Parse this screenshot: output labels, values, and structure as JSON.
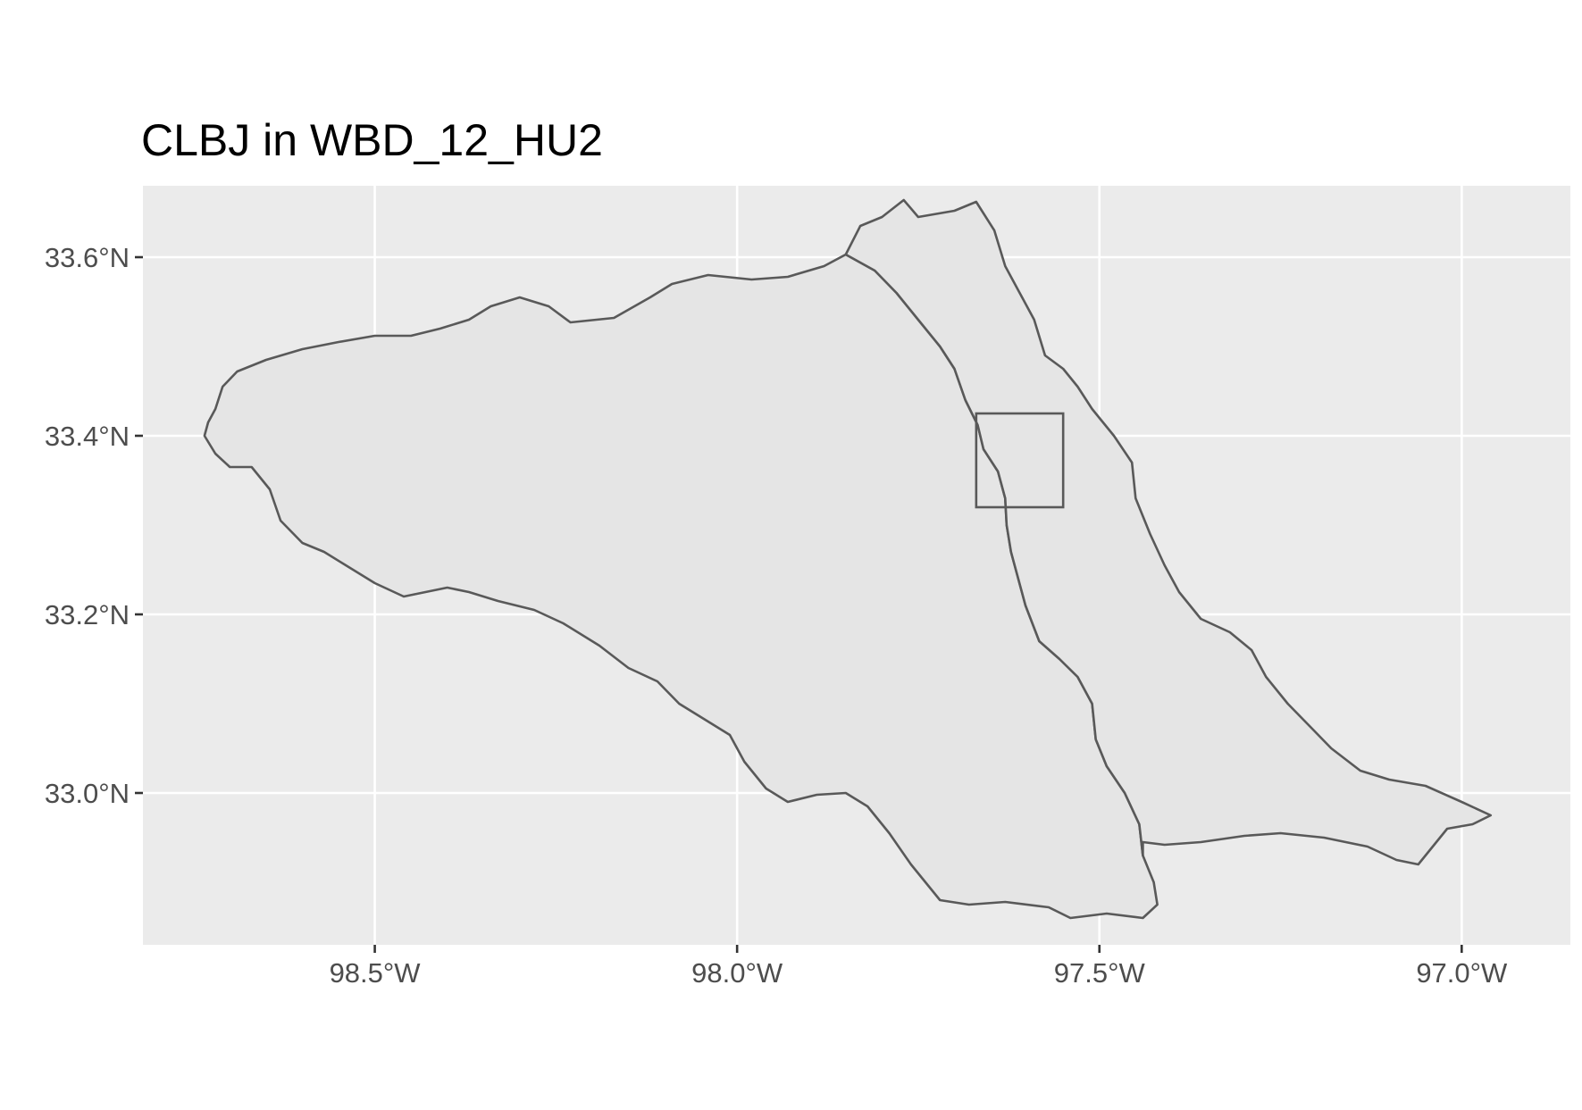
{
  "title": "CLBJ in WBD_12_HU2",
  "colors": {
    "panel_background": "#ebebeb",
    "grid": "#ffffff",
    "polygon_fill": "#e5e5e5",
    "polygon_stroke": "#595959",
    "tick": "#333333",
    "tick_label": "#4d4d4d"
  },
  "map": {
    "projection": "lon/lat",
    "x_range": [
      -98.82,
      -96.85
    ],
    "y_range": [
      32.83,
      33.68
    ],
    "x_ticks": [
      {
        "value": -98.5,
        "label": "98.5°W"
      },
      {
        "value": -98.0,
        "label": "98.0°W"
      },
      {
        "value": -97.5,
        "label": "97.5°W"
      },
      {
        "value": -97.0,
        "label": "97.0°W"
      }
    ],
    "y_ticks": [
      {
        "value": 33.6,
        "label": "33.6°N"
      },
      {
        "value": 33.4,
        "label": "33.4°N"
      },
      {
        "value": 33.2,
        "label": "33.2°N"
      },
      {
        "value": 33.0,
        "label": "33.0°N"
      }
    ],
    "grid": true,
    "watersheds": [
      {
        "id": "west",
        "outline": [
          [
            -98.73,
            33.415
          ],
          [
            -98.72,
            33.43
          ],
          [
            -98.71,
            33.455
          ],
          [
            -98.69,
            33.472
          ],
          [
            -98.65,
            33.485
          ],
          [
            -98.6,
            33.497
          ],
          [
            -98.55,
            33.505
          ],
          [
            -98.5,
            33.512
          ],
          [
            -98.45,
            33.512
          ],
          [
            -98.41,
            33.52
          ],
          [
            -98.37,
            33.53
          ],
          [
            -98.34,
            33.545
          ],
          [
            -98.3,
            33.555
          ],
          [
            -98.26,
            33.545
          ],
          [
            -98.23,
            33.527
          ],
          [
            -98.17,
            33.532
          ],
          [
            -98.12,
            33.555
          ],
          [
            -98.09,
            33.57
          ],
          [
            -98.04,
            33.58
          ],
          [
            -97.98,
            33.575
          ],
          [
            -97.93,
            33.578
          ],
          [
            -97.88,
            33.59
          ],
          [
            -97.85,
            33.603
          ],
          [
            -97.81,
            33.585
          ],
          [
            -97.78,
            33.56
          ],
          [
            -97.75,
            33.53
          ],
          [
            -97.72,
            33.5
          ],
          [
            -97.7,
            33.475
          ],
          [
            -97.685,
            33.44
          ],
          [
            -97.668,
            33.412
          ],
          [
            -97.66,
            33.385
          ],
          [
            -97.64,
            33.36
          ],
          [
            -97.63,
            33.33
          ],
          [
            -97.628,
            33.3
          ],
          [
            -97.622,
            33.27
          ],
          [
            -97.612,
            33.24
          ],
          [
            -97.602,
            33.21
          ],
          [
            -97.583,
            33.17
          ],
          [
            -97.555,
            33.15
          ],
          [
            -97.53,
            33.13
          ],
          [
            -97.51,
            33.1
          ],
          [
            -97.505,
            33.06
          ],
          [
            -97.49,
            33.03
          ],
          [
            -97.465,
            33.0
          ],
          [
            -97.445,
            32.965
          ],
          [
            -97.44,
            32.93
          ],
          [
            -97.425,
            32.9
          ],
          [
            -97.42,
            32.875
          ],
          [
            -97.44,
            32.86
          ],
          [
            -97.49,
            32.865
          ],
          [
            -97.54,
            32.86
          ],
          [
            -97.57,
            32.872
          ],
          [
            -97.63,
            32.878
          ],
          [
            -97.68,
            32.875
          ],
          [
            -97.72,
            32.88
          ],
          [
            -97.76,
            32.92
          ],
          [
            -97.79,
            32.955
          ],
          [
            -97.82,
            32.985
          ],
          [
            -97.85,
            33.0
          ],
          [
            -97.89,
            32.998
          ],
          [
            -97.93,
            32.99
          ],
          [
            -97.96,
            33.005
          ],
          [
            -97.99,
            33.035
          ],
          [
            -98.01,
            33.065
          ],
          [
            -98.04,
            33.08
          ],
          [
            -98.08,
            33.1
          ],
          [
            -98.11,
            33.125
          ],
          [
            -98.15,
            33.14
          ],
          [
            -98.19,
            33.165
          ],
          [
            -98.24,
            33.19
          ],
          [
            -98.28,
            33.205
          ],
          [
            -98.33,
            33.215
          ],
          [
            -98.37,
            33.225
          ],
          [
            -98.4,
            33.23
          ],
          [
            -98.46,
            33.22
          ],
          [
            -98.5,
            33.235
          ],
          [
            -98.54,
            33.255
          ],
          [
            -98.57,
            33.27
          ],
          [
            -98.6,
            33.28
          ],
          [
            -98.63,
            33.305
          ],
          [
            -98.645,
            33.34
          ],
          [
            -98.67,
            33.365
          ],
          [
            -98.7,
            33.365
          ],
          [
            -98.72,
            33.38
          ],
          [
            -98.735,
            33.4
          ]
        ]
      },
      {
        "id": "east",
        "outline": [
          [
            -97.85,
            33.603
          ],
          [
            -97.83,
            33.635
          ],
          [
            -97.8,
            33.645
          ],
          [
            -97.77,
            33.664
          ],
          [
            -97.75,
            33.645
          ],
          [
            -97.7,
            33.652
          ],
          [
            -97.67,
            33.662
          ],
          [
            -97.645,
            33.63
          ],
          [
            -97.63,
            33.59
          ],
          [
            -97.61,
            33.56
          ],
          [
            -97.59,
            33.53
          ],
          [
            -97.575,
            33.49
          ],
          [
            -97.55,
            33.475
          ],
          [
            -97.53,
            33.455
          ],
          [
            -97.51,
            33.43
          ],
          [
            -97.48,
            33.4
          ],
          [
            -97.455,
            33.37
          ],
          [
            -97.45,
            33.33
          ],
          [
            -97.43,
            33.29
          ],
          [
            -97.41,
            33.255
          ],
          [
            -97.39,
            33.225
          ],
          [
            -97.36,
            33.195
          ],
          [
            -97.32,
            33.18
          ],
          [
            -97.29,
            33.16
          ],
          [
            -97.27,
            33.13
          ],
          [
            -97.24,
            33.1
          ],
          [
            -97.21,
            33.075
          ],
          [
            -97.18,
            33.05
          ],
          [
            -97.14,
            33.025
          ],
          [
            -97.1,
            33.015
          ],
          [
            -97.05,
            33.008
          ],
          [
            -97.0,
            32.99
          ],
          [
            -96.96,
            32.975
          ],
          [
            -96.985,
            32.965
          ],
          [
            -97.02,
            32.96
          ],
          [
            -97.04,
            32.94
          ],
          [
            -97.06,
            32.92
          ],
          [
            -97.09,
            32.925
          ],
          [
            -97.13,
            32.94
          ],
          [
            -97.19,
            32.95
          ],
          [
            -97.25,
            32.955
          ],
          [
            -97.3,
            32.952
          ],
          [
            -97.36,
            32.945
          ],
          [
            -97.41,
            32.942
          ],
          [
            -97.44,
            32.945
          ],
          [
            -97.44,
            32.93
          ],
          [
            -97.445,
            32.965
          ],
          [
            -97.465,
            33.0
          ],
          [
            -97.49,
            33.03
          ],
          [
            -97.505,
            33.06
          ],
          [
            -97.51,
            33.1
          ],
          [
            -97.53,
            33.13
          ],
          [
            -97.555,
            33.15
          ],
          [
            -97.583,
            33.17
          ],
          [
            -97.602,
            33.21
          ],
          [
            -97.612,
            33.24
          ],
          [
            -97.622,
            33.27
          ],
          [
            -97.628,
            33.3
          ],
          [
            -97.63,
            33.33
          ],
          [
            -97.64,
            33.36
          ],
          [
            -97.66,
            33.385
          ],
          [
            -97.668,
            33.412
          ],
          [
            -97.685,
            33.44
          ],
          [
            -97.7,
            33.475
          ],
          [
            -97.72,
            33.5
          ],
          [
            -97.75,
            33.53
          ],
          [
            -97.78,
            33.56
          ],
          [
            -97.81,
            33.585
          ]
        ]
      }
    ],
    "site_box": {
      "label": "CLBJ",
      "lon_min": -97.67,
      "lon_max": -97.55,
      "lat_min": 33.32,
      "lat_max": 33.425
    }
  }
}
